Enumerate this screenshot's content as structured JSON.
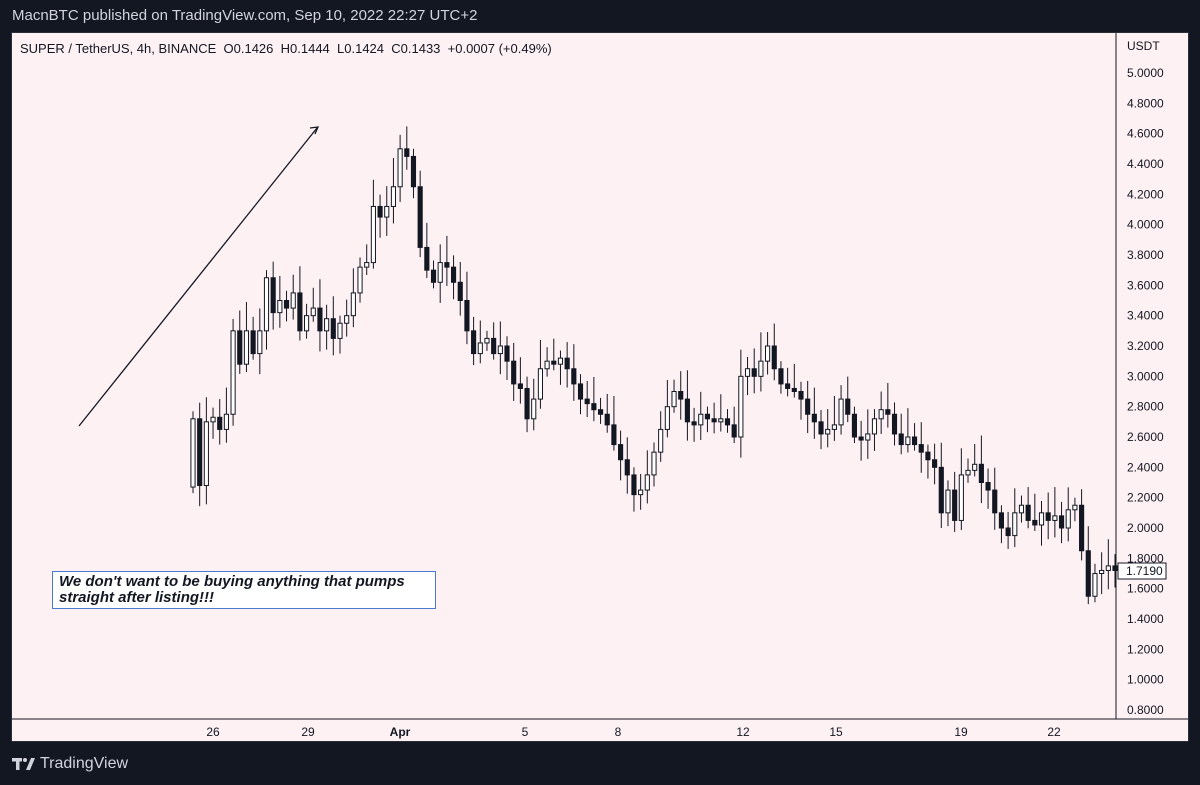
{
  "publish_line": "MacnBTC published on TradingView.com, Sep 10, 2022 22:27 UTC+2",
  "legend": {
    "symbol": "SUPER / TetherUS, 4h, BINANCE",
    "open": "O0.1426",
    "high": "H0.1444",
    "low": "L0.1424",
    "close": "C0.1433",
    "change": "+0.0007 (+0.49%)"
  },
  "price_axis": {
    "currency": "USDT",
    "labels": [
      "5.0000",
      "4.8000",
      "4.6000",
      "4.4000",
      "4.2000",
      "4.0000",
      "3.8000",
      "3.6000",
      "3.4000",
      "3.2000",
      "3.0000",
      "2.8000",
      "2.6000",
      "2.4000",
      "2.2000",
      "2.0000",
      "1.8000",
      "1.6000",
      "1.4000",
      "1.2000",
      "1.0000",
      "0.8000"
    ],
    "current_price": "1.7190"
  },
  "time_axis": {
    "labels": [
      "26",
      "29",
      "Apr",
      "5",
      "8",
      "12",
      "15",
      "19",
      "22"
    ]
  },
  "annotation": {
    "line1": "We don't want to be buying anything that pumps",
    "line2": "straight after listing!!!"
  },
  "footer": {
    "brand": "TradingView"
  },
  "chart_data": {
    "type": "candlestick",
    "symbol": "SUPER / TetherUS",
    "interval": "4h",
    "exchange": "BINANCE",
    "y_axis_unit": "USDT",
    "ylim": [
      0.8,
      5.0
    ],
    "x_ticks": [
      "26",
      "29",
      "Apr",
      "5",
      "8",
      "12",
      "15",
      "19",
      "22"
    ],
    "last_price": 1.719,
    "colors": {
      "up": "#ffffff",
      "down": "#131722",
      "wick": "#131722",
      "background": "#fdf1f3"
    },
    "closes": [
      2.72,
      2.28,
      2.7,
      2.73,
      2.65,
      2.75,
      3.3,
      3.08,
      3.3,
      3.15,
      3.3,
      3.65,
      3.42,
      3.5,
      3.45,
      3.55,
      3.3,
      3.4,
      3.45,
      3.3,
      3.38,
      3.25,
      3.35,
      3.4,
      3.55,
      3.72,
      3.75,
      4.12,
      4.05,
      4.12,
      4.25,
      4.5,
      4.45,
      4.25,
      3.85,
      3.7,
      3.62,
      3.75,
      3.72,
      3.62,
      3.5,
      3.3,
      3.15,
      3.22,
      3.25,
      3.15,
      3.2,
      3.1,
      2.95,
      2.92,
      2.72,
      2.85,
      3.05,
      3.1,
      3.08,
      3.12,
      3.05,
      2.95,
      2.85,
      2.82,
      2.78,
      2.75,
      2.68,
      2.55,
      2.45,
      2.35,
      2.22,
      2.25,
      2.35,
      2.5,
      2.65,
      2.8,
      2.9,
      2.85,
      2.7,
      2.68,
      2.75,
      2.72,
      2.7,
      2.72,
      2.68,
      2.6,
      3.0,
      3.05,
      3.0,
      3.1,
      3.2,
      3.05,
      2.95,
      2.92,
      2.9,
      2.85,
      2.75,
      2.7,
      2.62,
      2.65,
      2.68,
      2.85,
      2.75,
      2.6,
      2.58,
      2.62,
      2.72,
      2.78,
      2.75,
      2.62,
      2.55,
      2.6,
      2.55,
      2.5,
      2.45,
      2.4,
      2.1,
      2.25,
      2.05,
      2.35,
      2.38,
      2.42,
      2.3,
      2.25,
      2.1,
      2.0,
      1.95,
      2.1,
      2.15,
      2.05,
      2.02,
      2.1,
      2.05,
      2.08,
      2.0,
      2.12,
      2.15,
      1.85,
      1.55,
      1.7,
      1.72,
      1.75,
      1.72
    ],
    "annotations": [
      "arrow pointing up-right",
      "We don't want to be buying anything that pumps straight after listing!!!"
    ]
  }
}
